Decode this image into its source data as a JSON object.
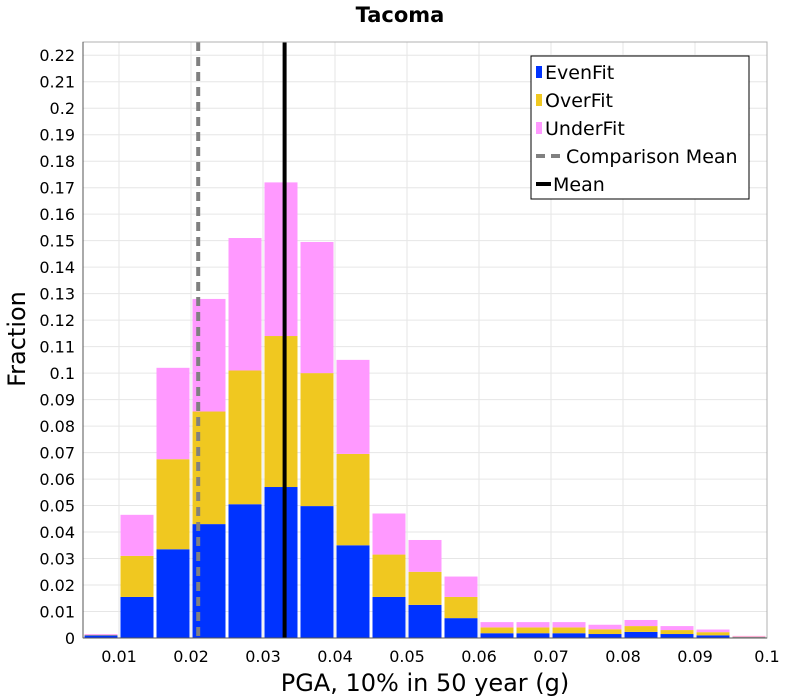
{
  "chart_data": {
    "type": "bar",
    "title": "Tacoma",
    "xlabel": "PGA, 10% in 50 year (g)",
    "ylabel": "Fraction",
    "xlim": [
      0.005,
      0.1
    ],
    "ylim": [
      0,
      0.225
    ],
    "grid": true,
    "legend_position": "top-right",
    "x_ticks": [
      "0.01",
      "0.02",
      "0.03",
      "0.04",
      "0.05",
      "0.06",
      "0.07",
      "0.08",
      "0.09",
      "0.1"
    ],
    "y_ticks": [
      "0",
      "0.01",
      "0.02",
      "0.03",
      "0.04",
      "0.05",
      "0.06",
      "0.07",
      "0.08",
      "0.09",
      "0.1",
      "0.11",
      "0.12",
      "0.13",
      "0.14",
      "0.15",
      "0.16",
      "0.17",
      "0.18",
      "0.19",
      "0.2",
      "0.21",
      "0.22"
    ],
    "bin_width": 0.005,
    "bin_centers": [
      0.0075,
      0.0125,
      0.0175,
      0.0225,
      0.0275,
      0.0325,
      0.0375,
      0.0425,
      0.0475,
      0.0525,
      0.0575,
      0.0625,
      0.0675,
      0.0725,
      0.0775,
      0.0825,
      0.0875,
      0.0925,
      0.0975
    ],
    "stacked": true,
    "series": [
      {
        "name": "EvenFit",
        "color": "#0033ff",
        "values": [
          0.001,
          0.0155,
          0.0335,
          0.043,
          0.0505,
          0.057,
          0.0498,
          0.035,
          0.0155,
          0.0125,
          0.0075,
          0.0018,
          0.0018,
          0.0018,
          0.0015,
          0.0023,
          0.0015,
          0.001,
          0.0003
        ]
      },
      {
        "name": "OverFit",
        "color": "#f0c820",
        "values": [
          0.0002,
          0.0155,
          0.034,
          0.0425,
          0.0505,
          0.057,
          0.0502,
          0.0345,
          0.016,
          0.0125,
          0.008,
          0.0022,
          0.0022,
          0.0022,
          0.0018,
          0.0022,
          0.0015,
          0.0012,
          0.0002
        ]
      },
      {
        "name": "UnderFit",
        "color": "#ff99ff",
        "values": [
          0.0003,
          0.0155,
          0.0345,
          0.0425,
          0.05,
          0.058,
          0.0495,
          0.0355,
          0.0155,
          0.012,
          0.0077,
          0.002,
          0.002,
          0.002,
          0.0017,
          0.0023,
          0.0015,
          0.001,
          0.0003
        ]
      }
    ],
    "reference_lines": [
      {
        "name": "Comparison Mean",
        "x": 0.021,
        "style": "dashed",
        "color": "#808080"
      },
      {
        "name": "Mean",
        "x": 0.033,
        "style": "solid",
        "color": "#000000"
      }
    ]
  }
}
